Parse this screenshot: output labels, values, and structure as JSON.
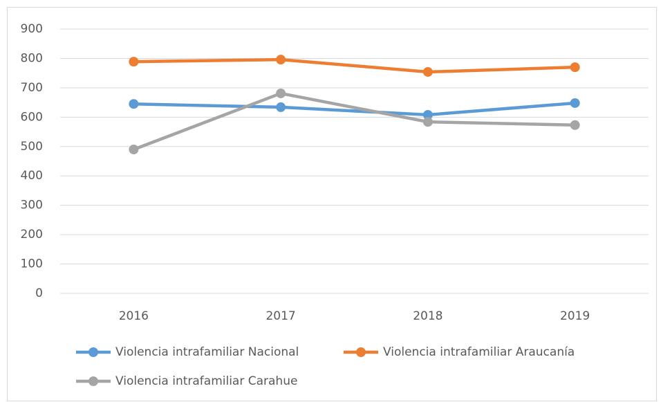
{
  "chart_data": {
    "type": "line",
    "categories": [
      "2016",
      "2017",
      "2018",
      "2019"
    ],
    "series": [
      {
        "name": "Violencia intrafamiliar Nacional",
        "color": "#5b9bd5",
        "values": [
          645,
          634,
          608,
          648
        ]
      },
      {
        "name": "Violencia intrafamiliar Araucanía",
        "color": "#ed7d31",
        "values": [
          789,
          796,
          754,
          770
        ]
      },
      {
        "name": "Violencia intrafamiliar Carahue",
        "color": "#a5a5a5",
        "values": [
          490,
          681,
          584,
          573
        ]
      }
    ],
    "ylim": [
      0,
      900
    ],
    "yticks": [
      0,
      100,
      200,
      300,
      400,
      500,
      600,
      700,
      800,
      900
    ],
    "grid": true,
    "legend": "bottom"
  }
}
